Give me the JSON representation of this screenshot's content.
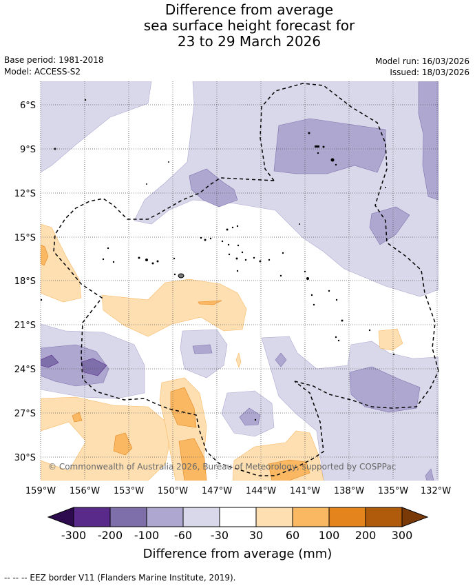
{
  "title_lines": [
    "Difference from average",
    "sea surface height forecast for",
    "23 to 29 March 2026"
  ],
  "base_period": "Base period: 1981-2018",
  "model": "Model: ACCESS-S2",
  "model_run": "Model run: 16/03/2026",
  "issued": "Issued: 18/03/2026",
  "copyright": "© Commonwealth of Australia 2026, Bureau of Meteorology, supported by COSPPac",
  "footer": "--  --  -- EEZ border V11 (Flanders Marine Institute, 2019).",
  "colorbar": {
    "label": "Difference from average (mm)",
    "ticks": [
      "-300",
      "-200",
      "-100",
      "-60",
      "-30",
      "30",
      "60",
      "100",
      "200",
      "300"
    ],
    "colors": {
      "below_min": "#2d0b4e",
      "c1": "#5a2a8a",
      "c2": "#7e6fab",
      "c3": "#aea8d0",
      "c4": "#d8d8ea",
      "neutral": "#ffffff",
      "w1": "#fddfb2",
      "w2": "#fbb863",
      "w3": "#e3841c",
      "w4": "#b05a0c",
      "above_max": "#7a3a08"
    }
  },
  "map": {
    "lon_labels": [
      "159°W",
      "156°W",
      "153°W",
      "150°W",
      "147°W",
      "144°W",
      "141°W",
      "138°W",
      "135°W",
      "132°W"
    ],
    "lat_labels": [
      "6°S",
      "9°S",
      "12°S",
      "15°S",
      "18°S",
      "21°S",
      "24°S",
      "27°S",
      "30°S"
    ]
  }
}
